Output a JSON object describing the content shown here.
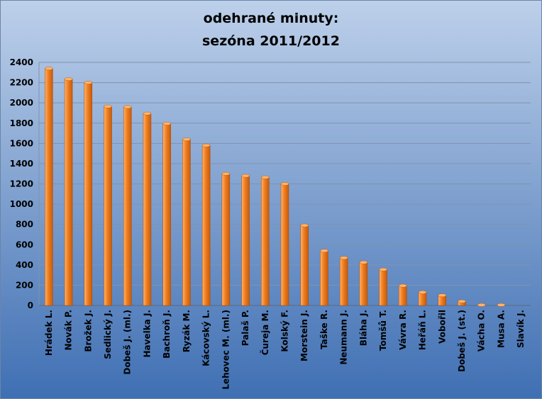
{
  "chart_data": {
    "type": "bar",
    "title_line1": "odehrané minuty:",
    "title_line2": "sezóna 2011/2012",
    "xlabel": "",
    "ylabel": "",
    "ylim": [
      0,
      2400
    ],
    "yticks": [
      "0",
      "200",
      "400",
      "600",
      "800",
      "1000",
      "1200",
      "1400",
      "1600",
      "1800",
      "2000",
      "2200",
      "2400"
    ],
    "grid": true,
    "legend": "none",
    "categories": [
      "Hrádek L.",
      "Novák P.",
      "Brožek J.",
      "Sedlický J.",
      "Dobeš J. (ml.)",
      "Havelka J.",
      "Bachroň J.",
      "Ryzák M.",
      "Kácovský L.",
      "Lehovec M. (ml.)",
      "Palaš P.",
      "Čureja M.",
      "Kolský F.",
      "Morstein J.",
      "Taške R.",
      "Neumann J.",
      "Bláha J.",
      "Tomšů T.",
      "Vávra R.",
      "Heřáň L.",
      "Vobořil",
      "Dobeš J. (st.)",
      "Vácha O.",
      "Musa A.",
      "Slavík J."
    ],
    "values": [
      2340,
      2235,
      2200,
      1965,
      1960,
      1895,
      1795,
      1640,
      1580,
      1300,
      1280,
      1265,
      1200,
      790,
      540,
      470,
      425,
      355,
      195,
      130,
      100,
      40,
      5,
      5,
      0
    ],
    "colors": {
      "bg_top": "#bdd0ea",
      "bg_bottom": "#3f6fb3",
      "bar_light": "#ffb36b",
      "bar_mid": "#f07d1e",
      "bar_dark": "#c55a0c",
      "grid": "#7f93b0",
      "text": "#000000"
    }
  }
}
